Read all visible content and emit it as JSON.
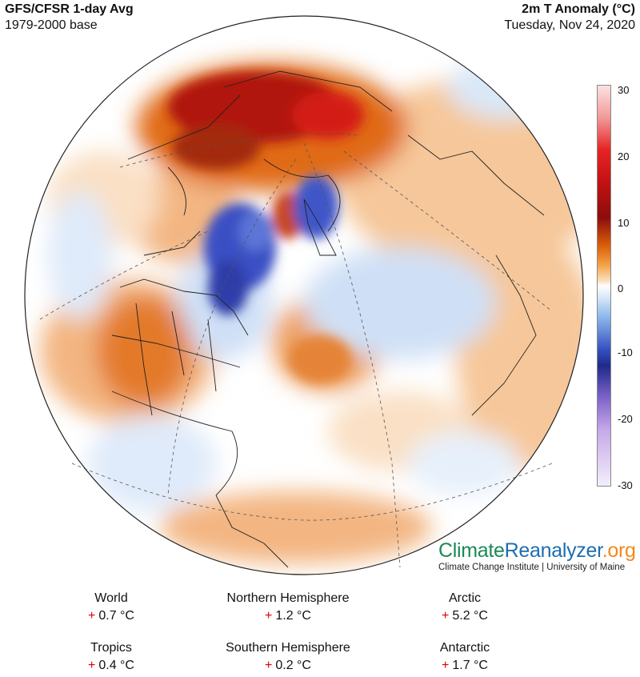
{
  "header": {
    "title_left": "GFS/CFSR 1-day Avg",
    "subtitle_left": "1979-2000 base",
    "title_right": "2m T Anomaly (°C)",
    "subtitle_right": "Tuesday, Nov 24, 2020"
  },
  "colorbar": {
    "ticks": [
      "30",
      "20",
      "10",
      "0",
      "-10",
      "-20",
      "-30"
    ],
    "colors": {
      "hot": "#8c0d0d",
      "warm": "#e8761a",
      "neutral": "#ffffff",
      "cool": "#8ab6ea",
      "cold": "#1f2a8a"
    }
  },
  "brand": {
    "part1": "Climate",
    "part2": "Reanalyzer",
    "part3": ".org",
    "subtitle": "Climate Change Institute | University of Maine"
  },
  "stats": [
    {
      "label": "World",
      "sign": "+",
      "value": "0.7 °C"
    },
    {
      "label": "Northern Hemisphere",
      "sign": "+",
      "value": "1.2 °C"
    },
    {
      "label": "Arctic",
      "sign": "+",
      "value": "5.2 °C"
    },
    {
      "label": "Tropics",
      "sign": "+",
      "value": "0.4 °C"
    },
    {
      "label": "Southern Hemisphere",
      "sign": "+",
      "value": "0.2 °C"
    },
    {
      "label": "Antarctic",
      "sign": "+",
      "value": "1.7 °C"
    }
  ]
}
